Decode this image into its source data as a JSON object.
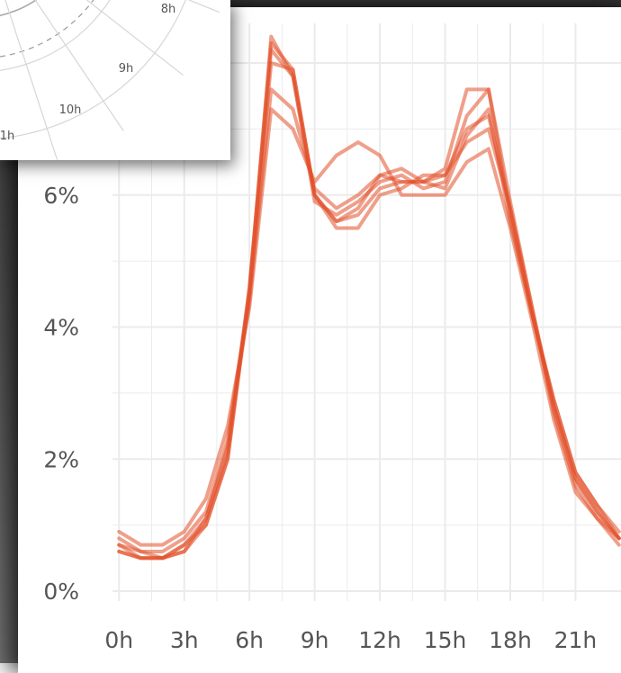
{
  "colors": {
    "series": "#e2502a",
    "grid": "#ebebeb",
    "tick_text": "#555555",
    "inset_ring": "#d6d6d6",
    "inset_dash": "#9a9a9a"
  },
  "chart_data": [
    {
      "type": "line",
      "title": "",
      "xlabel": "",
      "ylabel": "",
      "x": [
        0,
        1,
        2,
        3,
        4,
        5,
        6,
        7,
        8,
        9,
        10,
        11,
        12,
        13,
        14,
        15,
        16,
        17,
        18,
        19,
        20,
        21,
        22,
        23
      ],
      "xlim": [
        -0.3,
        23.3
      ],
      "ylim": [
        -0.15,
        8.6
      ],
      "x_ticks": [
        0,
        3,
        6,
        9,
        12,
        15,
        18,
        21
      ],
      "x_tick_labels": [
        "0h",
        "3h",
        "6h",
        "9h",
        "12h",
        "15h",
        "18h",
        "21h"
      ],
      "y_ticks": [
        0,
        2,
        4,
        6
      ],
      "y_tick_labels": [
        "0%",
        "2%",
        "4%",
        "6%"
      ],
      "grid": true,
      "legend": "none",
      "series": [
        {
          "values": [
            0.6,
            0.5,
            0.5,
            0.6,
            1.0,
            2.0,
            4.5,
            8.4,
            7.8,
            6.0,
            5.6,
            5.8,
            6.3,
            6.2,
            6.2,
            6.3,
            7.0,
            7.2,
            5.8,
            4.3,
            2.8,
            1.7,
            1.2,
            0.8
          ]
        },
        {
          "values": [
            0.7,
            0.6,
            0.5,
            0.7,
            1.1,
            2.1,
            4.6,
            8.2,
            7.8,
            5.9,
            5.7,
            5.9,
            6.2,
            6.3,
            6.1,
            6.2,
            7.2,
            7.6,
            5.7,
            4.2,
            2.9,
            1.8,
            1.3,
            0.8
          ]
        },
        {
          "values": [
            0.8,
            0.6,
            0.6,
            0.8,
            1.2,
            2.3,
            4.5,
            8.0,
            7.9,
            6.0,
            5.6,
            5.7,
            6.1,
            6.2,
            6.2,
            6.4,
            7.6,
            7.6,
            5.9,
            4.3,
            2.7,
            1.6,
            1.1,
            0.8
          ]
        },
        {
          "values": [
            0.9,
            0.7,
            0.7,
            0.9,
            1.4,
            2.5,
            4.3,
            7.3,
            7.0,
            6.2,
            6.6,
            6.8,
            6.6,
            6.0,
            6.0,
            6.0,
            6.5,
            6.7,
            5.5,
            4.1,
            2.6,
            1.5,
            1.1,
            0.7
          ]
        },
        {
          "values": [
            0.6,
            0.5,
            0.5,
            0.7,
            1.0,
            2.0,
            4.6,
            8.3,
            7.9,
            6.0,
            5.5,
            5.5,
            6.0,
            6.1,
            6.3,
            6.3,
            6.8,
            7.0,
            5.8,
            4.2,
            2.8,
            1.7,
            1.2,
            0.8
          ]
        },
        {
          "values": [
            0.7,
            0.5,
            0.5,
            0.6,
            1.1,
            2.2,
            4.4,
            7.6,
            7.3,
            6.1,
            5.8,
            6.0,
            6.3,
            6.4,
            6.2,
            6.1,
            6.9,
            7.3,
            5.6,
            4.2,
            2.9,
            1.8,
            1.3,
            0.9
          ]
        }
      ]
    },
    {
      "type": "line",
      "polar": true,
      "title": "",
      "angle_tick_labels": [
        "8h",
        "9h",
        "10h",
        "1h"
      ],
      "series": []
    }
  ]
}
